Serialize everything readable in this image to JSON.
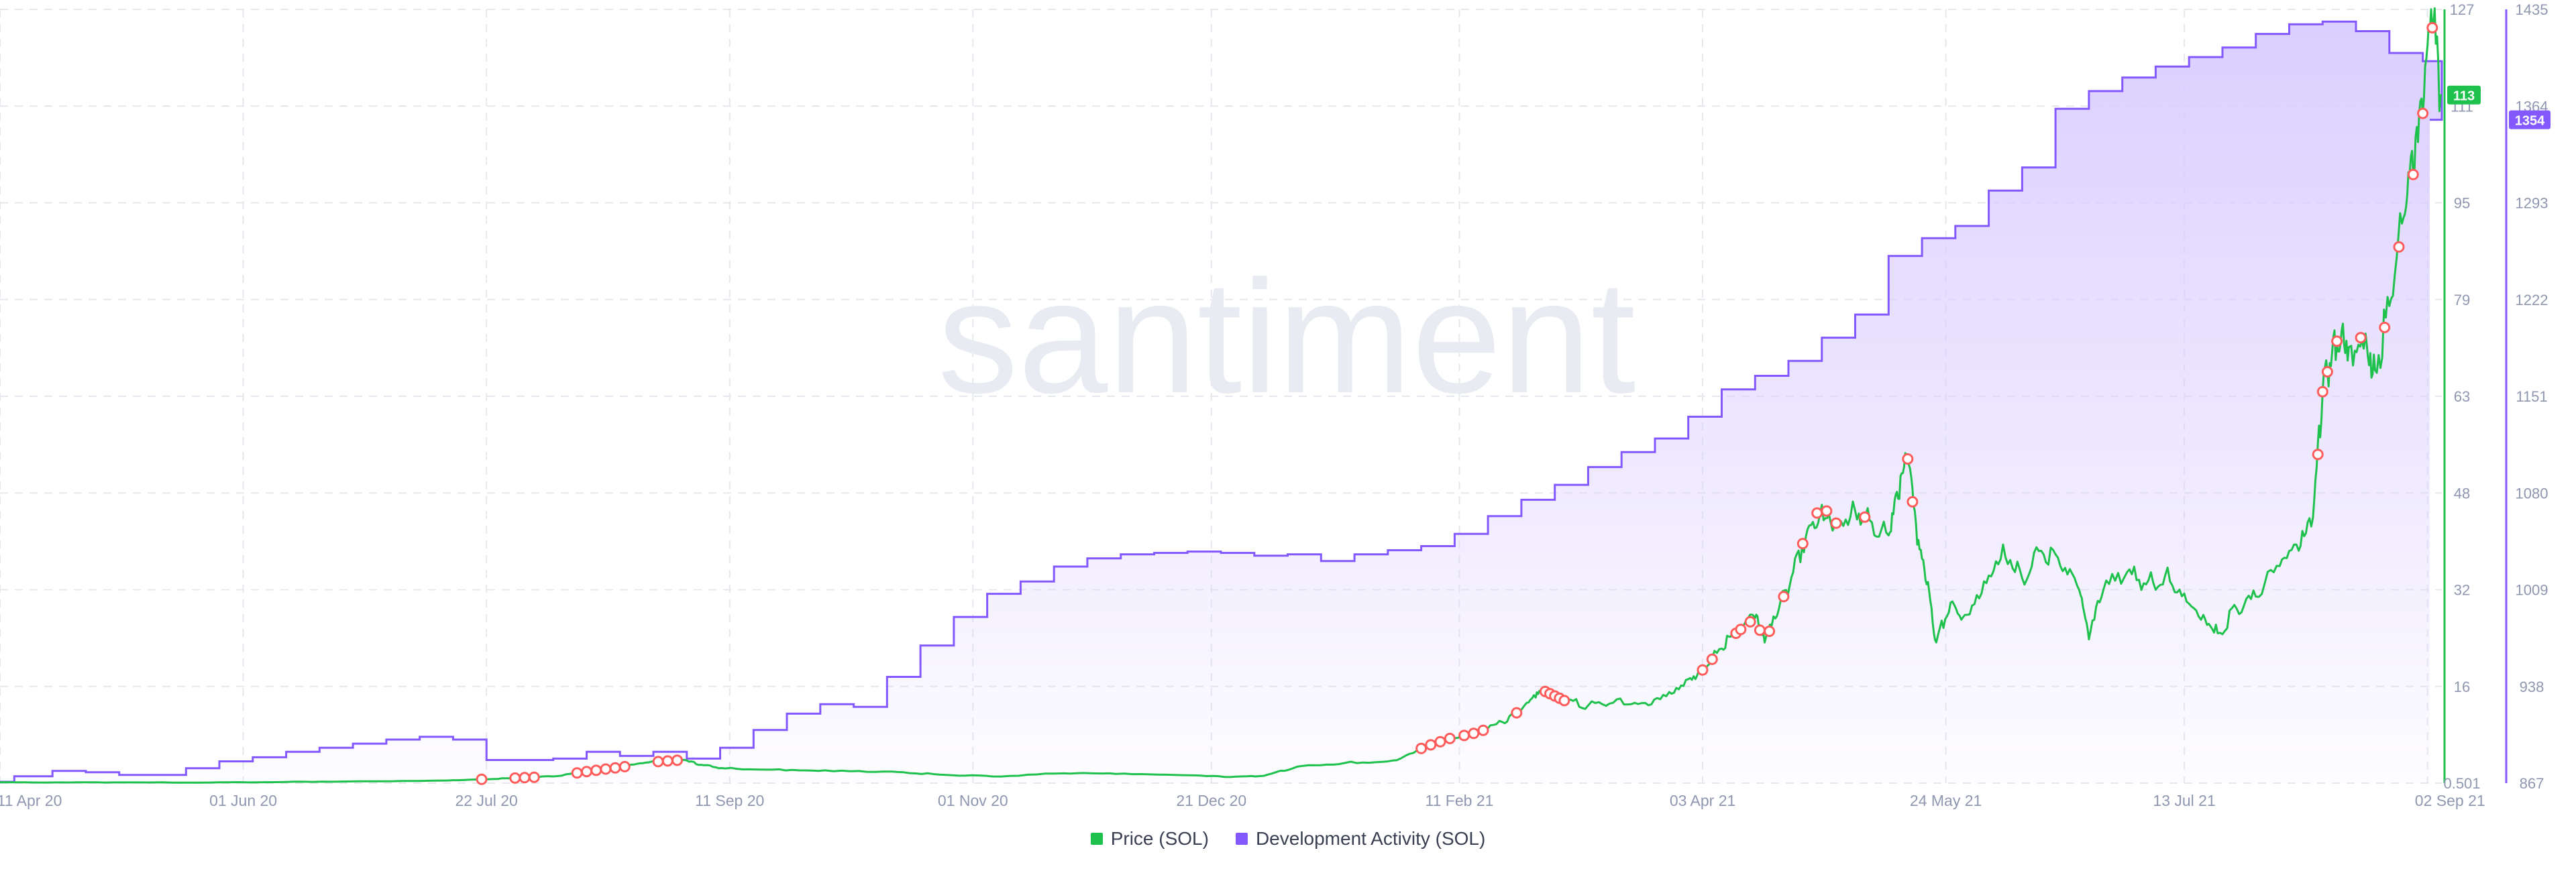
{
  "watermark": "santiment",
  "colors": {
    "price": "#1fc14d",
    "dev": "#8358ff",
    "dev_fill_top": "#d9ccff",
    "alert": "#ff5b5b",
    "grid": "#e6e8ee",
    "tick": "#8f97b0",
    "watermark": "#e9ebf2"
  },
  "chart_data": {
    "type": "line",
    "x_ticks": [
      "11 Apr 20",
      "01 Jun 20",
      "22 Jul 20",
      "11 Sep 20",
      "01 Nov 20",
      "21 Dec 20",
      "11 Feb 21",
      "03 Apr 21",
      "24 May 21",
      "13 Jul 21",
      "02 Sep 21"
    ],
    "x_range": [
      "2020-04-11",
      "2021-09-05"
    ],
    "y_axes": [
      {
        "id": "price",
        "series": "Price (SOL)",
        "side": "right",
        "ticks": [
          "127",
          "111",
          "95",
          "79",
          "63",
          "48",
          "32",
          "16",
          "0.501"
        ],
        "range": [
          0.501,
          127
        ],
        "last_value_label": "113"
      },
      {
        "id": "dev",
        "series": "Development Activity (SOL)",
        "side": "right",
        "ticks": [
          "1435",
          "1364",
          "1293",
          "1222",
          "1151",
          "1080",
          "1009",
          "938",
          "867"
        ],
        "range": [
          867,
          1435
        ],
        "last_value_label": "1354"
      }
    ],
    "series": [
      {
        "name": "Development Activity (SOL)",
        "axis": "dev",
        "style": "step-area",
        "points": [
          [
            "2020-04-04",
            868
          ],
          [
            "2020-04-14",
            872
          ],
          [
            "2020-04-22",
            876
          ],
          [
            "2020-04-29",
            875
          ],
          [
            "2020-05-06",
            873
          ],
          [
            "2020-05-20",
            878
          ],
          [
            "2020-05-27",
            883
          ],
          [
            "2020-06-03",
            886
          ],
          [
            "2020-06-10",
            890
          ],
          [
            "2020-06-17",
            893
          ],
          [
            "2020-06-24",
            896
          ],
          [
            "2020-07-01",
            899
          ],
          [
            "2020-07-08",
            901
          ],
          [
            "2020-07-15",
            899
          ],
          [
            "2020-07-22",
            884
          ],
          [
            "2020-08-05",
            885
          ],
          [
            "2020-08-12",
            890
          ],
          [
            "2020-08-19",
            887
          ],
          [
            "2020-08-26",
            890
          ],
          [
            "2020-09-02",
            885
          ],
          [
            "2020-09-09",
            893
          ],
          [
            "2020-09-16",
            906
          ],
          [
            "2020-09-23",
            918
          ],
          [
            "2020-09-30",
            925
          ],
          [
            "2020-10-07",
            923
          ],
          [
            "2020-10-14",
            945
          ],
          [
            "2020-10-21",
            968
          ],
          [
            "2020-10-28",
            989
          ],
          [
            "2020-11-04",
            1006
          ],
          [
            "2020-11-11",
            1015
          ],
          [
            "2020-11-18",
            1026
          ],
          [
            "2020-11-25",
            1032
          ],
          [
            "2020-12-02",
            1035
          ],
          [
            "2020-12-09",
            1036
          ],
          [
            "2020-12-16",
            1037
          ],
          [
            "2020-12-23",
            1036
          ],
          [
            "2020-12-30",
            1034
          ],
          [
            "2021-01-06",
            1035
          ],
          [
            "2021-01-13",
            1030
          ],
          [
            "2021-01-20",
            1035
          ],
          [
            "2021-01-27",
            1038
          ],
          [
            "2021-02-03",
            1041
          ],
          [
            "2021-02-10",
            1050
          ],
          [
            "2021-02-17",
            1063
          ],
          [
            "2021-02-24",
            1075
          ],
          [
            "2021-03-03",
            1086
          ],
          [
            "2021-03-10",
            1099
          ],
          [
            "2021-03-17",
            1110
          ],
          [
            "2021-03-24",
            1120
          ],
          [
            "2021-03-31",
            1136
          ],
          [
            "2021-04-07",
            1156
          ],
          [
            "2021-04-14",
            1166
          ],
          [
            "2021-04-21",
            1177
          ],
          [
            "2021-04-28",
            1194
          ],
          [
            "2021-05-05",
            1211
          ],
          [
            "2021-05-12",
            1254
          ],
          [
            "2021-05-19",
            1267
          ],
          [
            "2021-05-26",
            1276
          ],
          [
            "2021-06-02",
            1302
          ],
          [
            "2021-06-09",
            1319
          ],
          [
            "2021-06-16",
            1362
          ],
          [
            "2021-06-23",
            1375
          ],
          [
            "2021-06-30",
            1385
          ],
          [
            "2021-07-07",
            1393
          ],
          [
            "2021-07-14",
            1400
          ],
          [
            "2021-07-21",
            1407
          ],
          [
            "2021-07-28",
            1417
          ],
          [
            "2021-08-04",
            1424
          ],
          [
            "2021-08-11",
            1426
          ],
          [
            "2021-08-18",
            1419
          ],
          [
            "2021-08-25",
            1403
          ],
          [
            "2021-09-01",
            1397
          ],
          [
            "2021-09-05",
            1354
          ]
        ]
      },
      {
        "name": "Price (SOL)",
        "axis": "price",
        "style": "line",
        "points": [
          [
            "2020-04-04",
            0.65
          ],
          [
            "2020-04-20",
            0.6
          ],
          [
            "2020-05-05",
            0.62
          ],
          [
            "2020-05-25",
            0.6
          ],
          [
            "2020-06-10",
            0.7
          ],
          [
            "2020-06-25",
            0.8
          ],
          [
            "2020-07-10",
            0.9
          ],
          [
            "2020-07-20",
            1.1
          ],
          [
            "2020-07-27",
            1.3
          ],
          [
            "2020-08-05",
            1.6
          ],
          [
            "2020-08-12",
            2.4
          ],
          [
            "2020-08-20",
            3.2
          ],
          [
            "2020-08-25",
            3.9
          ],
          [
            "2020-09-01",
            4.3
          ],
          [
            "2020-09-05",
            3.5
          ],
          [
            "2020-09-10",
            2.9
          ],
          [
            "2020-09-20",
            2.7
          ],
          [
            "2020-10-01",
            2.6
          ],
          [
            "2020-10-15",
            2.4
          ],
          [
            "2020-10-25",
            1.9
          ],
          [
            "2020-11-05",
            1.6
          ],
          [
            "2020-11-20",
            2.1
          ],
          [
            "2020-12-01",
            2.0
          ],
          [
            "2020-12-15",
            1.8
          ],
          [
            "2020-12-25",
            1.5
          ],
          [
            "2021-01-01",
            1.7
          ],
          [
            "2021-01-08",
            3.2
          ],
          [
            "2021-01-18",
            3.8
          ],
          [
            "2021-01-28",
            4.2
          ],
          [
            "2021-02-04",
            6.5
          ],
          [
            "2021-02-09",
            7.8
          ],
          [
            "2021-02-15",
            8.8
          ],
          [
            "2021-02-20",
            10.5
          ],
          [
            "2021-02-24",
            12.5
          ],
          [
            "2021-02-27",
            14.5
          ],
          [
            "2021-03-01",
            15.5
          ],
          [
            "2021-03-05",
            14.0
          ],
          [
            "2021-03-10",
            13.2
          ],
          [
            "2021-03-16",
            14.2
          ],
          [
            "2021-03-22",
            13.6
          ],
          [
            "2021-03-27",
            15.4
          ],
          [
            "2021-03-31",
            17.5
          ],
          [
            "2021-04-03",
            19.0
          ],
          [
            "2021-04-07",
            22.5
          ],
          [
            "2021-04-10",
            25.0
          ],
          [
            "2021-04-14",
            27.5
          ],
          [
            "2021-04-16",
            23.5
          ],
          [
            "2021-04-19",
            29.0
          ],
          [
            "2021-04-22",
            35.0
          ],
          [
            "2021-04-25",
            42.0
          ],
          [
            "2021-04-28",
            46.0
          ],
          [
            "2021-05-01",
            43.0
          ],
          [
            "2021-05-05",
            45.0
          ],
          [
            "2021-05-08",
            43.5
          ],
          [
            "2021-05-12",
            41.0
          ],
          [
            "2021-05-14",
            47.0
          ],
          [
            "2021-05-16",
            53.5
          ],
          [
            "2021-05-18",
            39.5
          ],
          [
            "2021-05-20",
            33.0
          ],
          [
            "2021-05-22",
            23.5
          ],
          [
            "2021-05-25",
            30.0
          ],
          [
            "2021-05-28",
            28.0
          ],
          [
            "2021-06-01",
            33.5
          ],
          [
            "2021-06-05",
            39.5
          ],
          [
            "2021-06-09",
            34.0
          ],
          [
            "2021-06-13",
            38.5
          ],
          [
            "2021-06-17",
            36.0
          ],
          [
            "2021-06-21",
            32.0
          ],
          [
            "2021-06-23",
            24.0
          ],
          [
            "2021-06-26",
            32.0
          ],
          [
            "2021-07-01",
            35.0
          ],
          [
            "2021-07-05",
            33.0
          ],
          [
            "2021-07-09",
            34.5
          ],
          [
            "2021-07-13",
            31.5
          ],
          [
            "2021-07-17",
            28.0
          ],
          [
            "2021-07-20",
            25.0
          ],
          [
            "2021-07-24",
            29.0
          ],
          [
            "2021-07-28",
            31.0
          ],
          [
            "2021-08-02",
            36.0
          ],
          [
            "2021-08-06",
            38.5
          ],
          [
            "2021-08-09",
            44.0
          ],
          [
            "2021-08-11",
            64.5
          ],
          [
            "2021-08-13",
            71.0
          ],
          [
            "2021-08-15",
            74.5
          ],
          [
            "2021-08-17",
            72.0
          ],
          [
            "2021-08-20",
            74.0
          ],
          [
            "2021-08-22",
            68.0
          ],
          [
            "2021-08-25",
            78.5
          ],
          [
            "2021-08-28",
            93.0
          ],
          [
            "2021-08-30",
            100.0
          ],
          [
            "2021-09-01",
            110.0
          ],
          [
            "2021-09-03",
            124.0
          ],
          [
            "2021-09-05",
            113.0
          ]
        ]
      }
    ],
    "alerts": [
      "2020-07-21",
      "2020-07-28",
      "2020-07-30",
      "2020-08-01",
      "2020-08-10",
      "2020-08-12",
      "2020-08-14",
      "2020-08-16",
      "2020-08-18",
      "2020-08-20",
      "2020-08-27",
      "2020-08-29",
      "2020-08-31",
      "2021-02-03",
      "2021-02-05",
      "2021-02-07",
      "2021-02-09",
      "2021-02-12",
      "2021-02-14",
      "2021-02-16",
      "2021-02-23",
      "2021-03-01",
      "2021-03-02",
      "2021-03-03",
      "2021-03-04",
      "2021-03-05",
      "2021-04-03",
      "2021-04-05",
      "2021-04-10",
      "2021-04-11",
      "2021-04-13",
      "2021-04-15",
      "2021-04-17",
      "2021-04-20",
      "2021-04-24",
      "2021-04-27",
      "2021-04-29",
      "2021-05-01",
      "2021-05-07",
      "2021-05-16",
      "2021-05-17",
      "2021-08-10",
      "2021-08-11",
      "2021-08-12",
      "2021-08-14",
      "2021-08-19",
      "2021-08-24",
      "2021-08-27",
      "2021-08-30",
      "2021-09-01",
      "2021-09-03"
    ],
    "legend": [
      "Price (SOL)",
      "Development Activity (SOL)"
    ],
    "legend_position": "bottom-center",
    "grid": true
  }
}
